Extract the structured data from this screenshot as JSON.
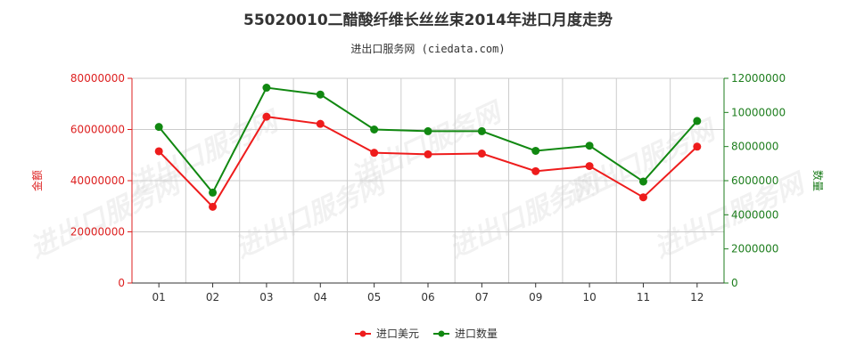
{
  "title": "55020010二醋酸纤维长丝丝束2014年进口月度走势",
  "subtitle": "进出口服务网 (ciedata.com)",
  "watermark": "进出口服务网",
  "colors": {
    "amount": "#ee1c1c",
    "quantity": "#118811",
    "grid": "#cccccc",
    "axis_left": "#dd1f1f",
    "axis_right": "#1e7e1e"
  },
  "chart_data": {
    "type": "line",
    "categories": [
      "01",
      "02",
      "03",
      "04",
      "05",
      "06",
      "07",
      "09",
      "10",
      "11",
      "12"
    ],
    "y_left": {
      "label": "金额",
      "range": [
        0,
        80000000
      ],
      "ticks": [
        "0",
        "20000000",
        "40000000",
        "60000000",
        "80000000"
      ]
    },
    "y_right": {
      "label": "数量",
      "range": [
        0,
        12000000
      ],
      "ticks": [
        "0",
        "2000000",
        "4000000",
        "6000000",
        "8000000",
        "10000000",
        "12000000"
      ]
    },
    "series": [
      {
        "name": "进口美元",
        "axis": "left",
        "values": [
          51500000,
          29800000,
          65000000,
          62200000,
          50900000,
          50300000,
          50600000,
          43700000,
          45700000,
          33500000,
          53300000
        ]
      },
      {
        "name": "进口数量",
        "axis": "right",
        "values": [
          9150000,
          5300000,
          11450000,
          11050000,
          9000000,
          8900000,
          8900000,
          7750000,
          8050000,
          5950000,
          9500000
        ]
      }
    ],
    "grid": true,
    "legend": "bottom-center"
  }
}
